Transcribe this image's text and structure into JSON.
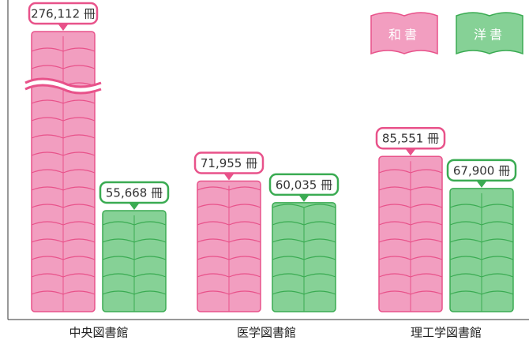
{
  "chart_data": {
    "type": "pictograph-bar",
    "categories": [
      "中央図書館",
      "医学図書館",
      "理工学図書館"
    ],
    "series": [
      {
        "name": "和書",
        "color": "#f29ec0",
        "values": [
          276112,
          71955,
          85551
        ],
        "value_labels": [
          "276,112 冊",
          "71,955 冊",
          "85,551 冊"
        ]
      },
      {
        "name": "洋書",
        "color": "#86d196",
        "values": [
          55668,
          60035,
          67900
        ],
        "value_labels": [
          "55,668 冊",
          "60,035 冊",
          "67,900 冊"
        ]
      }
    ],
    "axis_break": true
  }
}
